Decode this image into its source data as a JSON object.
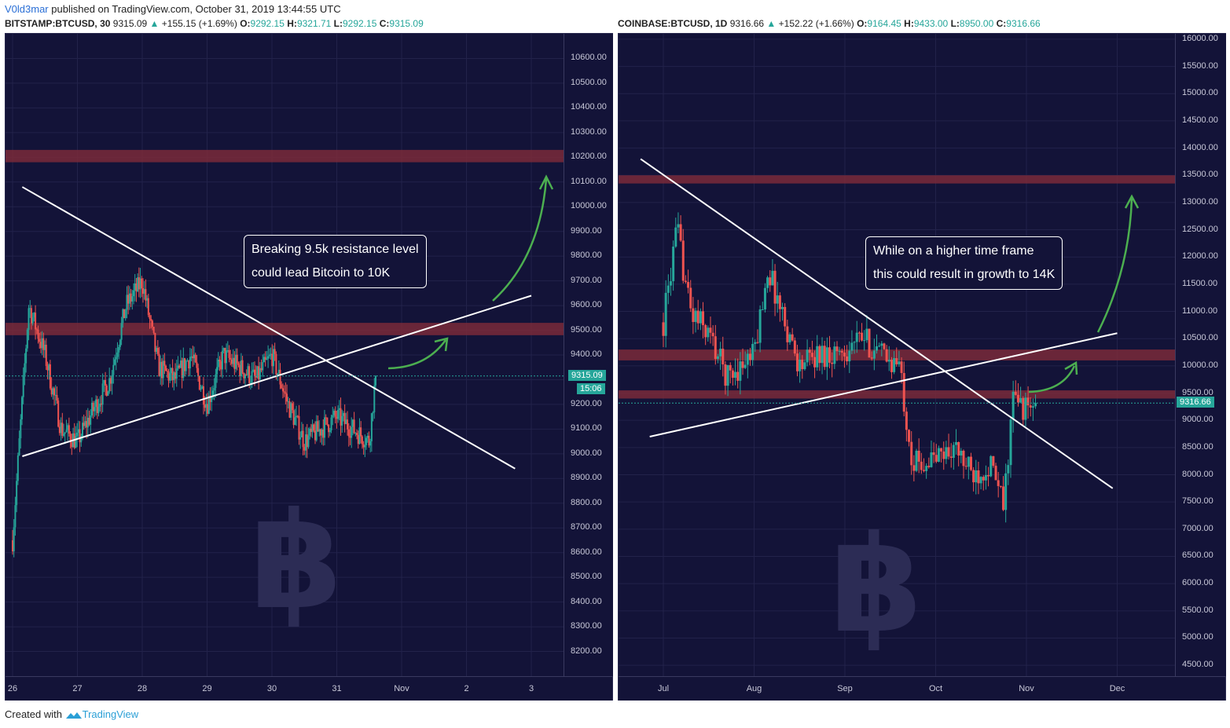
{
  "header": {
    "author": "V0ld3mar",
    "published": "published on TradingView.com, October 31, 2019 13:44:55 UTC"
  },
  "left": {
    "symbol_line": {
      "symbol": "BITSTAMP:BTCUSD, 30",
      "price": "9315.09",
      "change": "+155.15 (+1.69%)",
      "o_label": "O:",
      "o": "9292.15",
      "h_label": "H:",
      "h": "9321.71",
      "l_label": "L:",
      "l": "9292.15",
      "c_label": "C:",
      "c": "9315.09"
    },
    "last_price_label": "9315.09",
    "timer_label": "15:06",
    "callout": [
      "Breaking 9.5k resistance level",
      "could lead Bitcoin to 10K"
    ],
    "watermark_icon": "bitcoin-logo",
    "arrow_icon": "curved-arrow-up"
  },
  "right": {
    "symbol_line": {
      "symbol": "COINBASE:BTCUSD, 1D",
      "price": "9316.66",
      "change": "+152.22 (+1.66%)",
      "o_label": "O:",
      "o": "9164.45",
      "h_label": "H:",
      "h": "9433.00",
      "l_label": "L:",
      "l": "8950.00",
      "c_label": "C:",
      "c": "9316.66"
    },
    "last_price_label": "9316.66",
    "callout": [
      "While on a higher time frame",
      "this could result in growth to 14K"
    ],
    "watermark_icon": "bitcoin-logo",
    "arrow_icon": "curved-arrow-up"
  },
  "footer": {
    "prefix": "Created with",
    "brand": "TradingView"
  },
  "colors": {
    "background": "#131338",
    "up": "#26a69a",
    "down": "#ef5350",
    "zone": "#7a2a3a",
    "trendline": "#ffffff",
    "arrow": "#4caf50"
  },
  "chart_data": [
    {
      "type": "candlestick",
      "symbol": "BITSTAMP:BTCUSD",
      "interval": "30",
      "ylim": [
        8100,
        10700
      ],
      "y_ticks": [
        8200,
        8300,
        8400,
        8500,
        8600,
        8700,
        8800,
        8900,
        9000,
        9100,
        9200,
        9300,
        9400,
        9500,
        9600,
        9700,
        9800,
        9900,
        10000,
        10100,
        10200,
        10300,
        10400,
        10500,
        10600
      ],
      "x_ticks": [
        "26",
        "27",
        "28",
        "29",
        "30",
        "31",
        "Nov",
        "2",
        "3"
      ],
      "x_range_days": [
        -0.05,
        8.6
      ],
      "series": [
        {
          "name": "BTCUSD",
          "x_days": [
            0,
            0.25,
            0.5,
            0.75,
            1,
            1.25,
            1.5,
            1.75,
            2,
            2.25,
            2.5,
            2.75,
            3,
            3.25,
            3.5,
            3.75,
            4,
            4.25,
            4.5,
            4.75,
            5,
            5.25,
            5.5,
            5.6
          ],
          "close": [
            8650,
            9600,
            9400,
            9100,
            9050,
            9180,
            9300,
            9600,
            9700,
            9350,
            9300,
            9400,
            9200,
            9400,
            9350,
            9300,
            9400,
            9200,
            9050,
            9100,
            9150,
            9100,
            9050,
            9315
          ]
        }
      ],
      "resistance_zones": [
        [
          10180,
          10230
        ],
        [
          9480,
          9530
        ]
      ],
      "trendlines": [
        {
          "from": [
            0.15,
            10080
          ],
          "to": [
            7.75,
            8940
          ]
        },
        {
          "from": [
            0.15,
            8990
          ],
          "to": [
            8.0,
            9640
          ]
        }
      ],
      "last_price": 9315.09
    },
    {
      "type": "candlestick",
      "symbol": "COINBASE:BTCUSD",
      "interval": "1D",
      "ylim": [
        4300,
        16100
      ],
      "y_ticks": [
        4500,
        5000,
        5500,
        6000,
        6500,
        7000,
        7500,
        8000,
        8500,
        9000,
        9500,
        10000,
        10500,
        11000,
        11500,
        12000,
        12500,
        13000,
        13500,
        14000,
        14500,
        15000,
        15500,
        16000
      ],
      "x_ticks": [
        "Jul",
        "Aug",
        "Sep",
        "Oct",
        "Nov",
        "Dec"
      ],
      "series": [
        {
          "name": "BTCUSD",
          "x_month": [
            0,
            0.15,
            0.3,
            0.5,
            0.7,
            1.0,
            1.15,
            1.3,
            1.5,
            1.7,
            2.0,
            2.2,
            2.4,
            2.6,
            2.75,
            3.0,
            3.2,
            3.4,
            3.6,
            3.75,
            3.85,
            4.0,
            4.1
          ],
          "close": [
            10800,
            12500,
            11000,
            10600,
            9800,
            10200,
            11800,
            11000,
            10000,
            10200,
            10300,
            10500,
            10200,
            10000,
            8200,
            8300,
            8500,
            8000,
            8200,
            7400,
            9400,
            9200,
            9316
          ]
        }
      ],
      "resistance_zones": [
        [
          13350,
          13500
        ],
        [
          10100,
          10300
        ],
        [
          9400,
          9550
        ]
      ],
      "trendlines": [
        {
          "from": [
            -0.25,
            13800
          ],
          "to": [
            4.95,
            7750
          ]
        },
        {
          "from": [
            -0.15,
            8700
          ],
          "to": [
            5.0,
            10600
          ]
        }
      ],
      "last_price": 9316.66
    }
  ]
}
